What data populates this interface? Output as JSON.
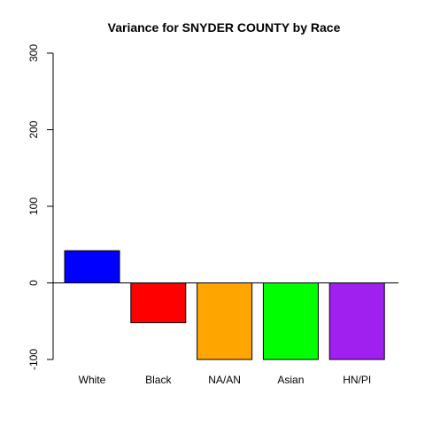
{
  "chart_data": {
    "type": "bar",
    "title": "Variance for SNYDER COUNTY by Race",
    "xlabel": "",
    "ylabel": "",
    "categories": [
      "White",
      "Black",
      "NA/AN",
      "Asian",
      "HN/PI"
    ],
    "values": [
      42,
      -52,
      -100,
      -100,
      -100
    ],
    "colors": [
      "#0000FF",
      "#FF0000",
      "#FFA500",
      "#00FF00",
      "#A020F0"
    ],
    "ylim": [
      -100,
      300
    ],
    "yticks": [
      -100,
      0,
      100,
      200,
      300
    ],
    "grid": false,
    "zero_line": true
  }
}
